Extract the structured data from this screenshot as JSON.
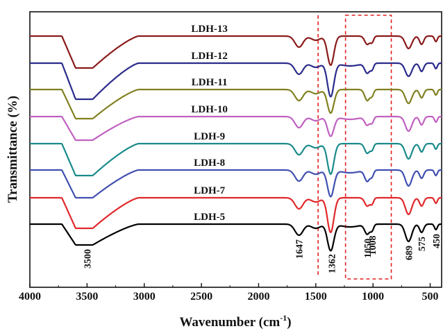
{
  "chart_data": {
    "type": "line",
    "xlabel": "Wavenumber (cm",
    "xlabel_sup": "-1",
    "xlabel_close": ")",
    "ylabel": "Transmittance (%)",
    "xlim": [
      4000,
      400
    ],
    "x_reversed": true,
    "x_ticks": [
      4000,
      3500,
      3000,
      2500,
      2000,
      1500,
      1000,
      500
    ],
    "x_tick_labels": [
      "4000",
      "3500",
      "3000",
      "2500",
      "2000",
      "1500",
      "1000",
      "500"
    ],
    "y_ticks_shown": false,
    "grid": false,
    "legend": "inline labels above each curve",
    "peak_annotations": [
      {
        "wavenumber": 3500,
        "label": "3500"
      },
      {
        "wavenumber": 1647,
        "label": "1647"
      },
      {
        "wavenumber": 1362,
        "label": "1362"
      },
      {
        "wavenumber": 1050,
        "label": "1050"
      },
      {
        "wavenumber": 1008,
        "label": "1008"
      },
      {
        "wavenumber": 689,
        "label": "689"
      },
      {
        "wavenumber": 575,
        "label": "575"
      },
      {
        "wavenumber": 450,
        "label": "450"
      }
    ],
    "highlight_regions": [
      {
        "kind": "line",
        "wavenumber": 1480
      },
      {
        "kind": "box",
        "from": 1240,
        "to": 840
      }
    ],
    "series": [
      {
        "name": "LDH-13",
        "color": "#8b1a1a",
        "baseline": 52,
        "broad_depth": 46,
        "sharp_depth": 42,
        "has_sharp_1362": true
      },
      {
        "name": "LDH-12",
        "color": "#2a2a8c",
        "baseline": 91,
        "broad_depth": 52,
        "sharp_depth": 48,
        "has_sharp_1362": true
      },
      {
        "name": "LDH-11",
        "color": "#808020",
        "baseline": 129,
        "broad_depth": 42,
        "sharp_depth": 34,
        "has_sharp_1362": true
      },
      {
        "name": "LDH-10",
        "color": "#c060c0",
        "baseline": 168,
        "broad_depth": 34,
        "sharp_depth": 28,
        "has_sharp_1362": true
      },
      {
        "name": "LDH-9",
        "color": "#1a8a8a",
        "baseline": 207,
        "broad_depth": 46,
        "sharp_depth": 44,
        "has_sharp_1362": true
      },
      {
        "name": "LDH-8",
        "color": "#4050b0",
        "baseline": 245,
        "broad_depth": 40,
        "sharp_depth": 38,
        "has_sharp_1362": true
      },
      {
        "name": "LDH-7",
        "color": "#e0282a",
        "baseline": 285,
        "broad_depth": 44,
        "sharp_depth": 50,
        "has_sharp_1362": true
      },
      {
        "name": "LDH-5",
        "color": "#000000",
        "baseline": 323,
        "broad_depth": 30,
        "sharp_depth": 38,
        "has_sharp_1362": true
      }
    ]
  }
}
